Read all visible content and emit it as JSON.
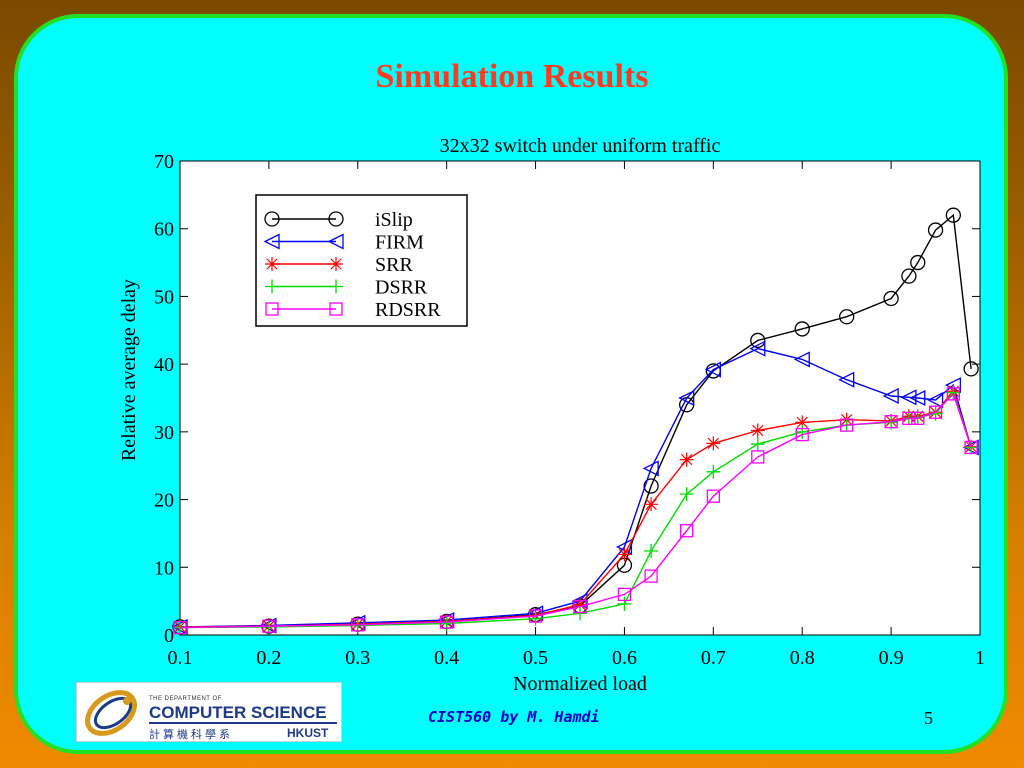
{
  "slide": {
    "title": "Simulation Results",
    "footer": "CIST560 by M. Hamdi",
    "page_number": "5"
  },
  "logo": {
    "dept_text": "THE DEPARTMENT OF",
    "name": "COMPUTER SCIENCE",
    "chinese": "計算機科學系",
    "institution": "HKUST"
  },
  "colors": {
    "background_top": "#7a4a00",
    "background_bottom": "#f08a00",
    "panel": "#00ffff",
    "panel_border": "#22e022",
    "title": "#ff3b1f",
    "footer": "#0000cc"
  },
  "chart_data": {
    "type": "line",
    "title": "32x32 switch under uniform traffic",
    "xlabel": "Normalized load",
    "ylabel": "Relative average delay",
    "xlim": [
      0.1,
      1
    ],
    "ylim": [
      0,
      70
    ],
    "xticks": [
      "0.1",
      "0.2",
      "0.3",
      "0.4",
      "0.5",
      "0.6",
      "0.7",
      "0.8",
      "0.9",
      "1"
    ],
    "xtick_values": [
      0.1,
      0.2,
      0.3,
      0.4,
      0.5,
      0.6,
      0.7,
      0.8,
      0.9,
      1.0
    ],
    "yticks": [
      "0",
      "10",
      "20",
      "30",
      "40",
      "50",
      "60",
      "70"
    ],
    "ytick_values": [
      0,
      10,
      20,
      30,
      40,
      50,
      60,
      70
    ],
    "grid": false,
    "legend_position": "top-left",
    "series": [
      {
        "name": "iSlip",
        "color": "#000000",
        "marker": "circle",
        "x": [
          0.1,
          0.2,
          0.3,
          0.4,
          0.5,
          0.55,
          0.6,
          0.63,
          0.67,
          0.7,
          0.75,
          0.8,
          0.85,
          0.9,
          0.92,
          0.93,
          0.95,
          0.97,
          0.99
        ],
        "y": [
          1.2,
          1.3,
          1.6,
          2.0,
          3.0,
          4.3,
          10.3,
          22,
          34,
          39,
          43.5,
          45.2,
          47,
          49.7,
          53,
          55,
          59.8,
          62,
          39.3
        ]
      },
      {
        "name": "FIRM",
        "color": "#0000ff",
        "marker": "triangle-left",
        "x": [
          0.1,
          0.2,
          0.3,
          0.4,
          0.5,
          0.55,
          0.6,
          0.63,
          0.67,
          0.7,
          0.75,
          0.8,
          0.85,
          0.9,
          0.92,
          0.93,
          0.95,
          0.97,
          0.99
        ],
        "y": [
          1.2,
          1.4,
          1.8,
          2.2,
          3.2,
          5.0,
          13,
          24.6,
          35,
          39.2,
          42.3,
          40.7,
          37.7,
          35.3,
          35.1,
          35.0,
          34.7,
          36.9,
          27.7
        ]
      },
      {
        "name": "SRR",
        "color": "#ff0000",
        "marker": "asterisk",
        "x": [
          0.1,
          0.2,
          0.3,
          0.4,
          0.5,
          0.55,
          0.6,
          0.63,
          0.67,
          0.7,
          0.75,
          0.8,
          0.85,
          0.9,
          0.92,
          0.93,
          0.95,
          0.97,
          0.99
        ],
        "y": [
          1.2,
          1.3,
          1.6,
          2.0,
          2.9,
          4.5,
          11.9,
          19.3,
          25.9,
          28.3,
          30.2,
          31.4,
          31.8,
          31.6,
          32.3,
          32.3,
          32.9,
          36.0,
          27.8
        ]
      },
      {
        "name": "DSRR",
        "color": "#00dd00",
        "marker": "plus",
        "x": [
          0.1,
          0.2,
          0.3,
          0.4,
          0.5,
          0.55,
          0.6,
          0.63,
          0.67,
          0.7,
          0.75,
          0.8,
          0.85,
          0.9,
          0.92,
          0.93,
          0.95,
          0.97,
          0.99
        ],
        "y": [
          1.1,
          1.2,
          1.4,
          1.7,
          2.4,
          3.2,
          4.6,
          12.4,
          20.8,
          24.1,
          28.2,
          30.0,
          31.0,
          31.4,
          32.0,
          32.1,
          32.7,
          35.8,
          27.7
        ]
      },
      {
        "name": "RDSRR",
        "color": "#ff00ff",
        "marker": "square",
        "x": [
          0.1,
          0.2,
          0.3,
          0.4,
          0.5,
          0.55,
          0.6,
          0.63,
          0.67,
          0.7,
          0.75,
          0.8,
          0.85,
          0.9,
          0.92,
          0.93,
          0.95,
          0.97,
          0.99
        ],
        "y": [
          1.1,
          1.3,
          1.5,
          1.9,
          2.8,
          4.2,
          6.0,
          8.7,
          15.4,
          20.5,
          26.3,
          29.6,
          31.0,
          31.5,
          32.0,
          32.0,
          32.9,
          35.6,
          27.7
        ]
      }
    ]
  }
}
